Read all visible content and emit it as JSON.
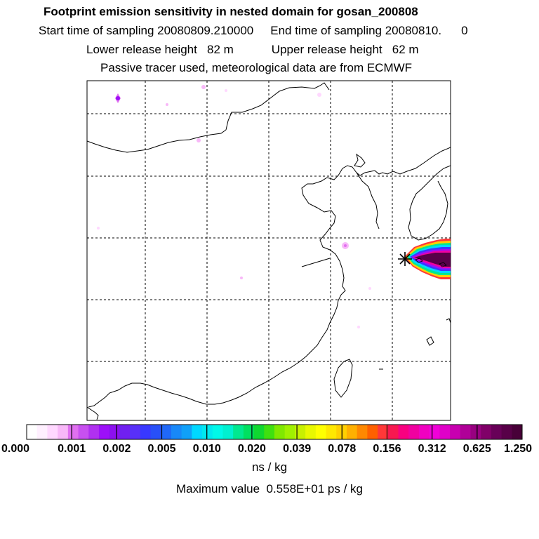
{
  "header": {
    "title": "Footprint emission sensitivity in nested domain for gosan_200808",
    "start_label": "Start time of sampling",
    "start_value": "20080809.210000",
    "end_label": "End time of sampling",
    "end_value": "20080810.",
    "end_suffix": "0",
    "lower_label": "Lower release height",
    "lower_value": "82 m",
    "upper_label": "Upper release height",
    "upper_value": "62 m",
    "note": "Passive tracer used, meteorological data are from ECMWF"
  },
  "colorbar": {
    "tick_labels": [
      "0.000",
      "0.001",
      "0.002",
      "0.005",
      "0.010",
      "0.020",
      "0.039",
      "0.078",
      "0.156",
      "0.312",
      "0.625",
      "1.250"
    ],
    "colors": [
      "#ffffff",
      "#fff0ff",
      "#ffd8ff",
      "#f8b8f8",
      "#e070f0",
      "#c850f0",
      "#b030f0",
      "#9c10f8",
      "#8c10f0",
      "#7020f0",
      "#5830f8",
      "#3838ff",
      "#2850f8",
      "#2068f8",
      "#1888f8",
      "#10a0f8",
      "#00d8ff",
      "#00e8f0",
      "#00f8e8",
      "#00f0d0",
      "#00e890",
      "#00e060",
      "#10d830",
      "#40e010",
      "#80e800",
      "#a0f000",
      "#c8f000",
      "#e8f800",
      "#ffff00",
      "#ffe800",
      "#ffd000",
      "#ffb000",
      "#ff8800",
      "#ff6000",
      "#ff3838",
      "#f81850",
      "#f80080",
      "#f000a0",
      "#f000c0",
      "#f000d8",
      "#e000c8",
      "#c800b0",
      "#b00098",
      "#980080",
      "#800068",
      "#680058",
      "#580048",
      "#480038"
    ],
    "unit": "ns / kg",
    "max_label": "Maximum value",
    "max_value": "0.558E+01 ps / kg"
  },
  "map": {
    "release_marker": "release-point-star-icon",
    "plume_colors": [
      "#ff3838",
      "#ffd000",
      "#00e890",
      "#00d8ff",
      "#3838ff",
      "#9c10f8",
      "#f000a0",
      "#580048"
    ]
  }
}
